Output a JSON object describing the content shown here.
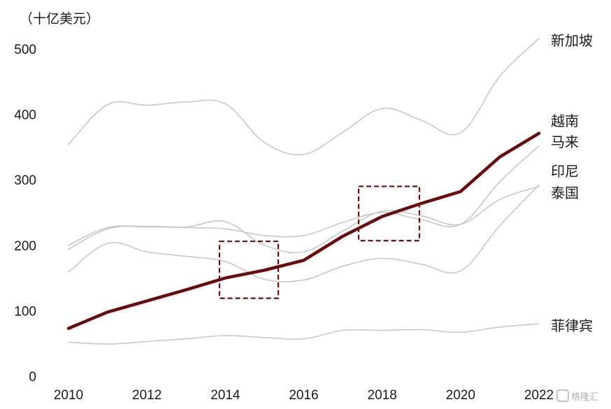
{
  "chart_data": {
    "type": "line",
    "unit_label": "（十亿美元）",
    "x": [
      2010,
      2011,
      2012,
      2013,
      2014,
      2015,
      2016,
      2017,
      2018,
      2019,
      2020,
      2021,
      2022
    ],
    "x_ticks": [
      "2010",
      "2012",
      "2014",
      "2016",
      "2018",
      "2020",
      "2022"
    ],
    "y_ticks": [
      "0",
      "100",
      "200",
      "300",
      "400",
      "500"
    ],
    "ylim": [
      0,
      530
    ],
    "grid": false,
    "legend": "none",
    "series": [
      {
        "name": "新加坡",
        "color": "#c8c8c8",
        "highlight": false,
        "values": [
          354,
          415,
          414,
          419,
          416,
          357,
          339,
          373,
          409,
          391,
          372,
          458,
          516
        ]
      },
      {
        "name": "越南",
        "color": "#6b0a0a",
        "highlight": true,
        "values": [
          73,
          98,
          115,
          132,
          150,
          162,
          177,
          214,
          244,
          264,
          282,
          335,
          371
        ]
      },
      {
        "name": "马来",
        "color": "#c8c8c8",
        "highlight": false,
        "values": [
          200,
          227,
          228,
          227,
          225,
          215,
          215,
          235,
          250,
          239,
          232,
          297,
          352
        ]
      },
      {
        "name": "印尼",
        "color": "#c8c8c8",
        "highlight": false,
        "values": [
          194,
          225,
          229,
          228,
          236,
          200,
          190,
          222,
          252,
          245,
          232,
          270,
          290
        ]
      },
      {
        "name": "泰国",
        "color": "#c8c8c8",
        "highlight": false,
        "values": [
          159,
          203,
          190,
          183,
          175,
          148,
          147,
          168,
          180,
          171,
          161,
          230,
          292
        ]
      },
      {
        "name": "菲律宾",
        "color": "#c8c8c8",
        "highlight": false,
        "values": [
          52,
          49,
          53,
          57,
          62,
          59,
          57,
          70,
          70,
          71,
          67,
          75,
          80
        ]
      }
    ],
    "annotations": [
      {
        "type": "dashed-box",
        "x_range": [
          2013.85,
          2015.35
        ],
        "y_range": [
          119,
          206
        ],
        "color": "#6b0a0a"
      },
      {
        "type": "dashed-box",
        "x_range": [
          2017.4,
          2018.95
        ],
        "y_range": [
          207,
          290
        ],
        "color": "#6b0a0a"
      }
    ]
  },
  "watermark": "格隆汇"
}
